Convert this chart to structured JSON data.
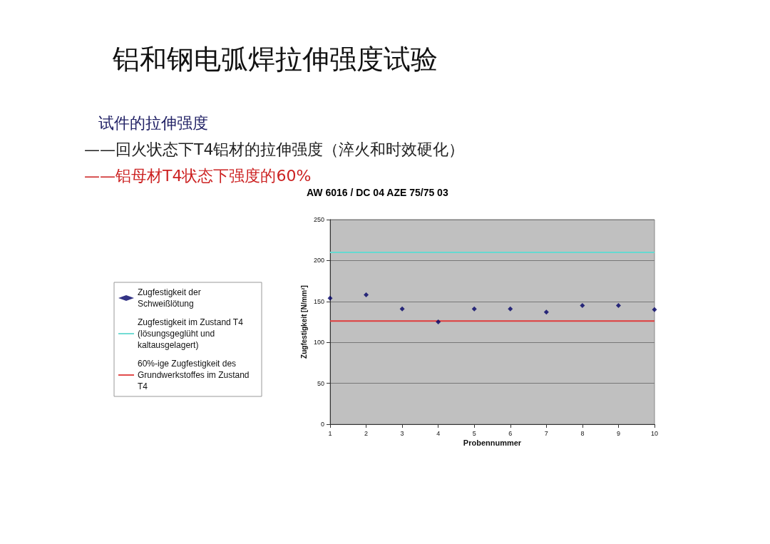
{
  "chart_data": {
    "type": "scatter",
    "title": "铝和钢电弧焊拉伸强度试验",
    "subtitle": "AW 6016 / DC 04 AZE 75/75 03",
    "annotations": [
      "试件的拉伸强度",
      "——回火状态下T4铝材的拉伸强度（淬火和时效硬化）",
      "——铝母材T4状态下强度的60%"
    ],
    "xlabel": "Probennummer",
    "ylabel": "Zugfestigkeit [N/mm²]",
    "x": [
      1,
      2,
      3,
      4,
      5,
      6,
      7,
      8,
      9,
      10
    ],
    "series": [
      {
        "name": "Zugfestigkeit der Schweißlötung",
        "color": "#000066",
        "values": [
          154,
          158,
          141,
          125,
          141,
          141,
          137,
          145,
          145,
          140
        ]
      }
    ],
    "ref_lines": [
      {
        "axis": "y",
        "value": 210,
        "label": "Zugfestigkeit im Zustand T4 (lösungsgeglüht und kaltausgelagert)",
        "color": "#66d9d0"
      },
      {
        "axis": "y",
        "value": 126,
        "label": "60%-ige Zugfestigkeit des Grundwerkstoffes im Zustand T4",
        "color": "#e03c3c"
      }
    ],
    "marker": "diamond",
    "xlim": [
      1,
      10
    ],
    "xticks": [
      1,
      2,
      3,
      4,
      5,
      6,
      7,
      8,
      9,
      10
    ],
    "ylim": [
      0,
      250
    ],
    "yticks": [
      0,
      50,
      100,
      150,
      200,
      250
    ],
    "grid": "y",
    "legend": "left"
  }
}
